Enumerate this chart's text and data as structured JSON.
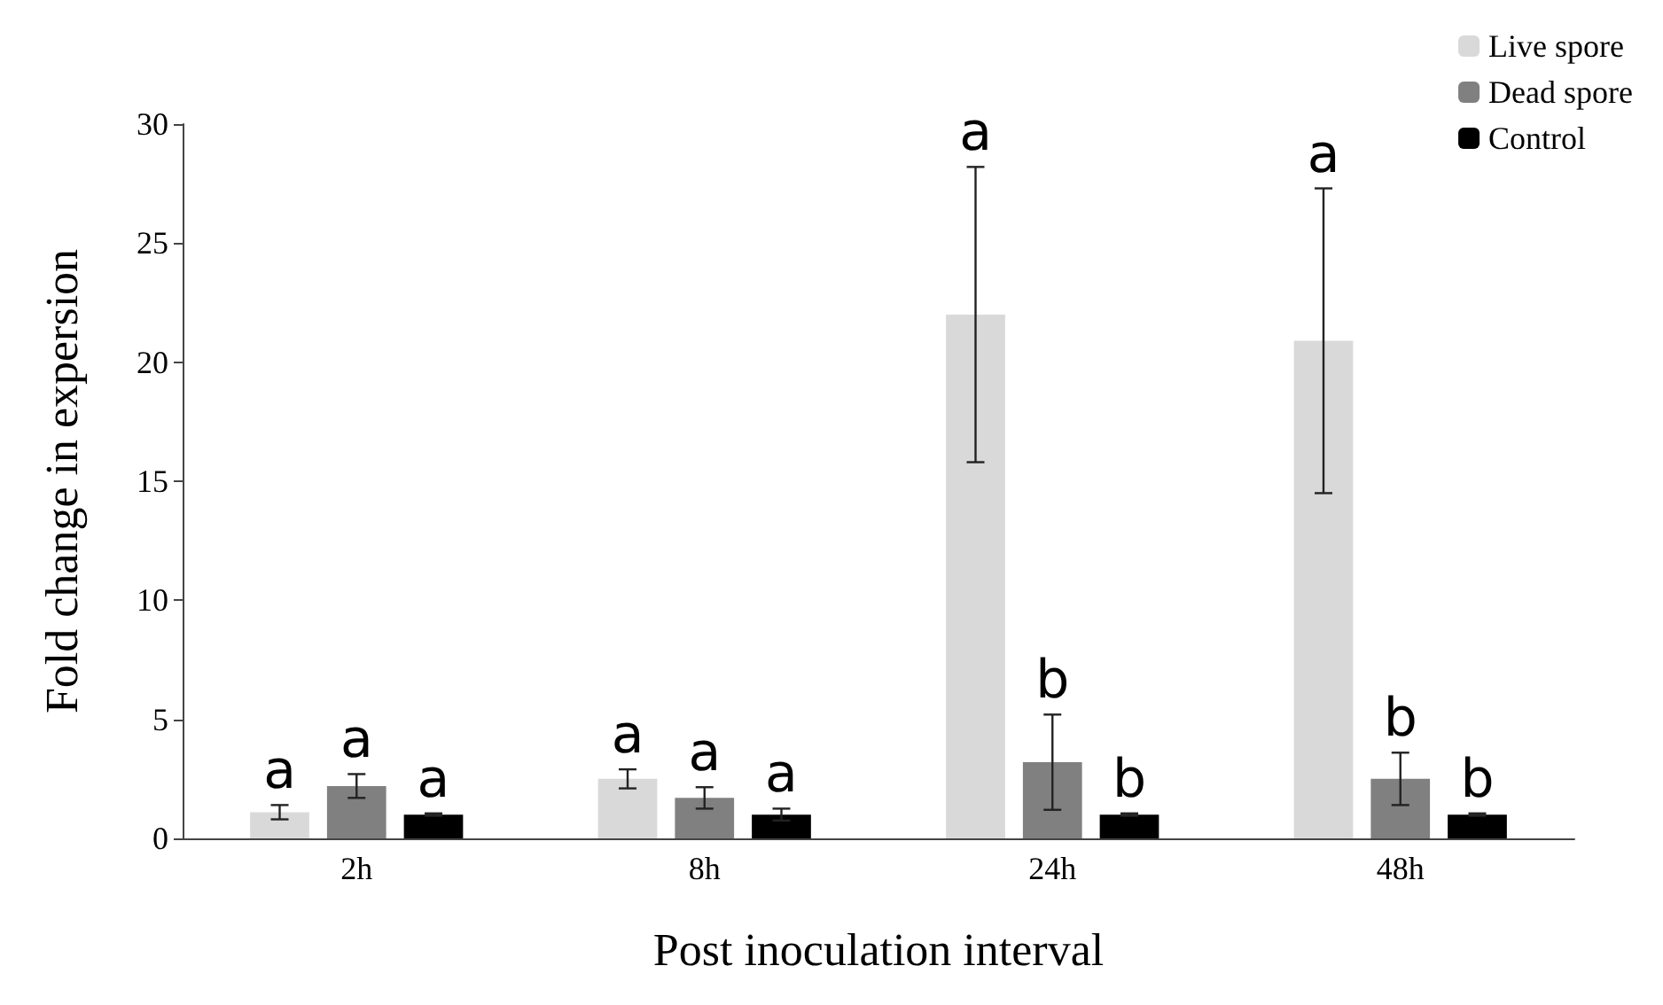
{
  "chart_data": {
    "type": "bar",
    "xlabel": "Post inoculation interval",
    "ylabel": "Fold change in expersion",
    "categories": [
      "2h",
      "8h",
      "24h",
      "48h"
    ],
    "series": [
      {
        "name": "Live spore",
        "color": "#d9d9d9",
        "values": [
          1.1,
          2.5,
          22.0,
          20.9
        ],
        "errors": [
          0.3,
          0.4,
          6.2,
          6.4
        ],
        "value_labels": [
          "a",
          "a",
          "a",
          "a"
        ]
      },
      {
        "name": "Dead spore",
        "color": "#808080",
        "values": [
          2.2,
          1.7,
          3.2,
          2.5
        ],
        "errors": [
          0.5,
          0.45,
          2.0,
          1.1
        ],
        "value_labels": [
          "a",
          "a",
          "b",
          "b"
        ]
      },
      {
        "name": "Control",
        "color": "#000000",
        "values": [
          1.0,
          1.0,
          1.0,
          1.0
        ],
        "errors": [
          0.05,
          0.25,
          0.05,
          0.05
        ],
        "value_labels": [
          "a",
          "a",
          "b",
          "b"
        ]
      }
    ],
    "ylim": [
      0,
      30
    ],
    "yticks": [
      0,
      5,
      10,
      15,
      20,
      25,
      30
    ],
    "grid": false,
    "legend": "top right"
  }
}
